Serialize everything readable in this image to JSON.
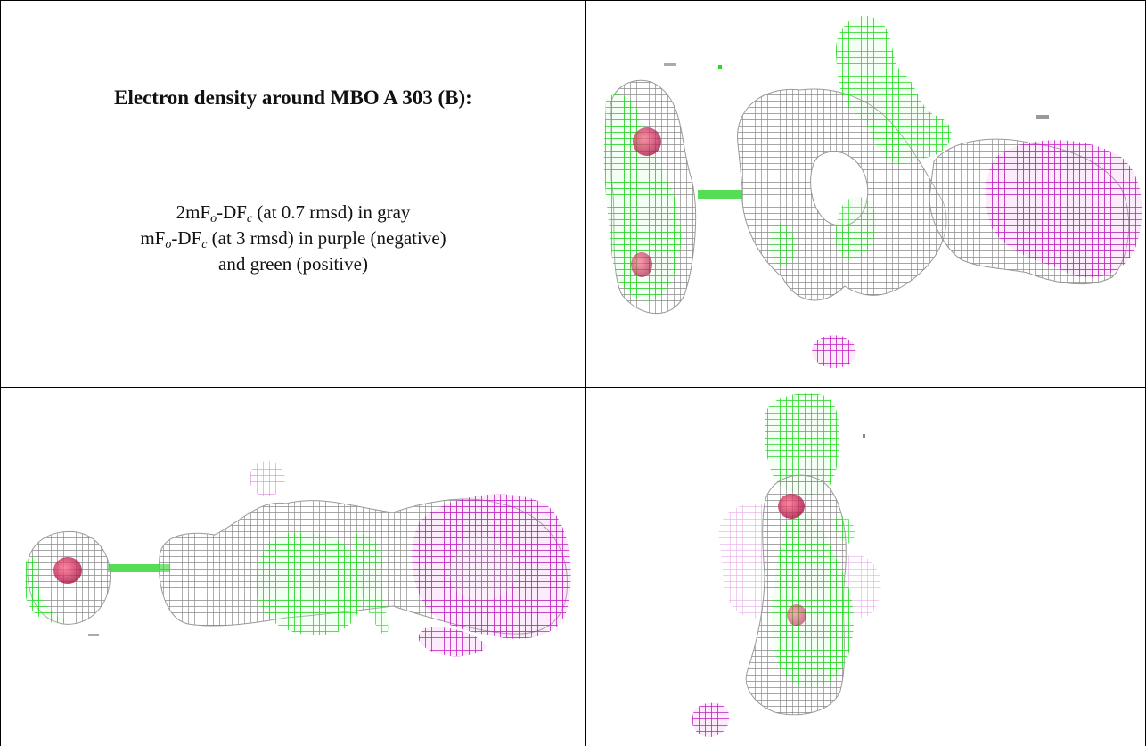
{
  "title": "Electron density around MBO A 303 (B):",
  "legend": {
    "line1_pre": "2mF",
    "line1_sub1": "o",
    "line1_mid": "-DF",
    "line1_sub2": "c",
    "line1_post": " (at 0.7 rmsd) in gray",
    "line2_pre": "mF",
    "line2_sub1": "o",
    "line2_mid": "-DF",
    "line2_sub2": "c",
    "line2_post": " (at 3 rmsd) in purple (negative)",
    "line3": "and green (positive)"
  },
  "panels": [
    {
      "name": "view-top-right",
      "description": "density map view 1"
    },
    {
      "name": "view-bottom-left",
      "description": "density map view 2"
    },
    {
      "name": "view-bottom-right",
      "description": "density map view 3"
    }
  ],
  "colors": {
    "gray_mesh": "#9a9a9a",
    "negative_mesh": "#cc22cc",
    "positive_mesh": "#22ee22",
    "atom": "#cc2255",
    "bond": "#55dd55"
  }
}
